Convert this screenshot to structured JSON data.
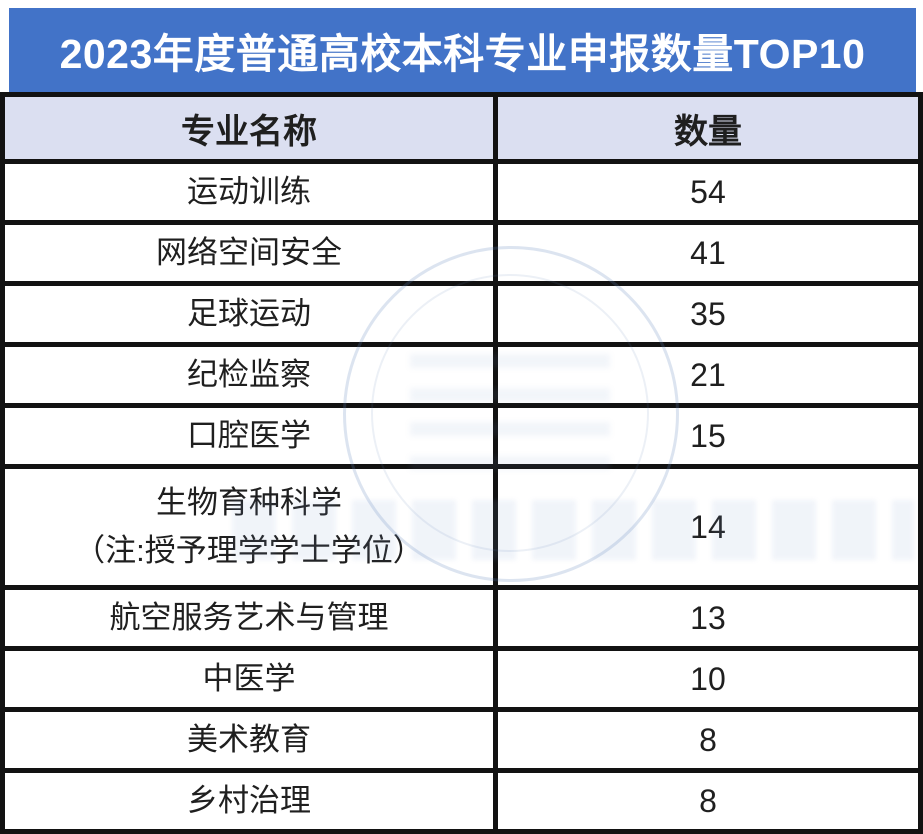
{
  "title": "2023年度普通高校本科专业申报数量TOP10",
  "table": {
    "columns": [
      "专业名称",
      "数量"
    ],
    "rows": [
      {
        "major": "运动训练",
        "count": "54"
      },
      {
        "major": "网络空间安全",
        "count": "41"
      },
      {
        "major": "足球运动",
        "count": "35"
      },
      {
        "major": "纪检监察",
        "count": "21"
      },
      {
        "major": "口腔医学",
        "count": "15"
      },
      {
        "major": "生物育种科学",
        "note": "（注:授予理学学士学位）",
        "count": "14"
      },
      {
        "major": "航空服务艺术与管理",
        "count": "13"
      },
      {
        "major": "中医学",
        "count": "10"
      },
      {
        "major": "美术教育",
        "count": "8"
      },
      {
        "major": "乡村治理",
        "count": "8"
      }
    ]
  },
  "chart_data": {
    "type": "table",
    "title": "2023年度普通高校本科专业申报数量TOP10",
    "columns": [
      "专业名称",
      "数量"
    ],
    "categories": [
      "运动训练",
      "网络空间安全",
      "足球运动",
      "纪检监察",
      "口腔医学",
      "生物育种科学",
      "航空服务艺术与管理",
      "中医学",
      "美术教育",
      "乡村治理"
    ],
    "values": [
      54,
      41,
      35,
      21,
      15,
      14,
      13,
      10,
      8,
      8
    ],
    "annotations": [
      "生物育种科学（注:授予理学学士学位）"
    ]
  },
  "colors": {
    "banner_bg": "#4273C8",
    "banner_text": "#FFFFFF",
    "header_row_bg": "#DBDFF1",
    "border": "#121212",
    "cell_text": "#1F1F1F",
    "page_bg": "#FFFFFF"
  }
}
